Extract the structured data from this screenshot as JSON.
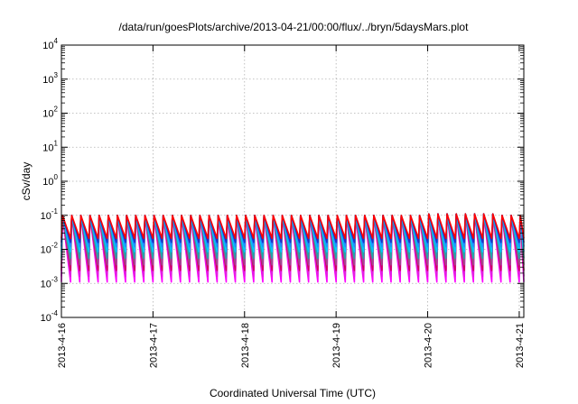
{
  "chart_data": {
    "type": "line",
    "title": "/data/run/goesPlots/archive/2013-04-21/00:00/flux/../bryn/5daysMars.plot",
    "xlabel": "Coordinated Universal Time (UTC)",
    "ylabel": "cSv/day",
    "y_scale": "log",
    "ylim": [
      0.0001,
      10000
    ],
    "xlim": [
      0,
      5.05
    ],
    "grid": true,
    "y_ticks": [
      {
        "base": "10",
        "exp": "-4"
      },
      {
        "base": "10",
        "exp": "-3"
      },
      {
        "base": "10",
        "exp": "-2"
      },
      {
        "base": "10",
        "exp": "-1"
      },
      {
        "base": "10",
        "exp": "0"
      },
      {
        "base": "10",
        "exp": "1"
      },
      {
        "base": "10",
        "exp": "2"
      },
      {
        "base": "10",
        "exp": "3"
      },
      {
        "base": "10",
        "exp": "4"
      }
    ],
    "x_ticks": [
      {
        "label": "2013-4-16",
        "day": 0
      },
      {
        "label": "2013-4-17",
        "day": 1
      },
      {
        "label": "2013-4-18",
        "day": 2
      },
      {
        "label": "2013-4-19",
        "day": 3
      },
      {
        "label": "2013-4-20",
        "day": 4
      },
      {
        "label": "2013-4-21",
        "day": 5
      }
    ],
    "waveform": {
      "cycles_per_day": 10,
      "peak_value": 0.1,
      "day4_peak_value": 0.11
    },
    "series": [
      {
        "color": "#ff00ff",
        "trough_value": 0.0011
      },
      {
        "color": "#e020e0",
        "trough_value": 0.0016
      },
      {
        "color": "#d00060",
        "trough_value": 0.0024
      },
      {
        "color": "#a04a90",
        "trough_value": 0.0035
      },
      {
        "color": "#20a8a8",
        "trough_value": 0.0055
      },
      {
        "color": "#00c8ff",
        "trough_value": 0.0085
      },
      {
        "color": "#1e90ff",
        "trough_value": 0.012
      },
      {
        "color": "#2030c8",
        "trough_value": 0.016
      },
      {
        "color": "#ff0000",
        "trough_value": 0.021
      }
    ]
  }
}
